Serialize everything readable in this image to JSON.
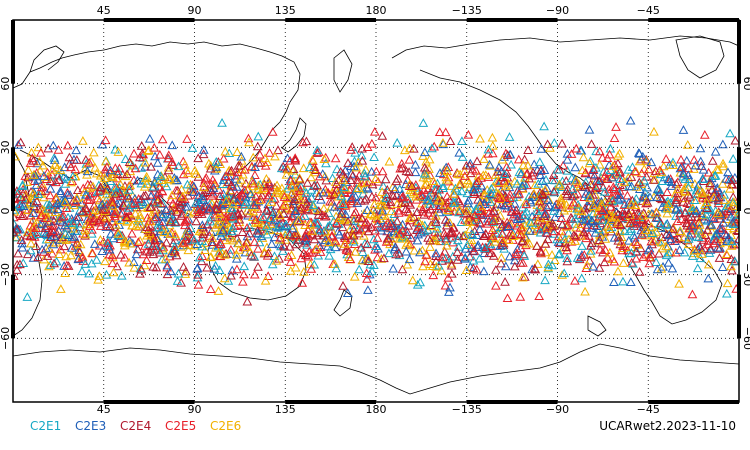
{
  "chart_data": {
    "type": "scatter",
    "projection": "cylindrical-equidistant",
    "center_longitude": 180,
    "xlim": [
      0,
      360
    ],
    "ylim": [
      -90,
      90
    ],
    "grid": true,
    "legend_position": "bottom-left",
    "x_tick_labels": [
      {
        "lon": 45,
        "label": "45"
      },
      {
        "lon": 90,
        "label": "90"
      },
      {
        "lon": 135,
        "label": "135"
      },
      {
        "lon": 180,
        "label": "180"
      },
      {
        "lon": 225,
        "label": "−135"
      },
      {
        "lon": 270,
        "label": "−90"
      },
      {
        "lon": 315,
        "label": "−45"
      }
    ],
    "y_tick_labels": [
      {
        "lat": 60,
        "label": "60"
      },
      {
        "lat": 30,
        "label": "30"
      },
      {
        "lat": 0,
        "label": "0"
      },
      {
        "lat": -30,
        "label": "−30"
      },
      {
        "lat": -60,
        "label": "−60"
      }
    ],
    "marker": "triangle-open",
    "series": [
      {
        "name": "C2E1",
        "color": "#17a8c4",
        "count": 520
      },
      {
        "name": "C2E3",
        "color": "#1f5fb8",
        "count": 520
      },
      {
        "name": "C2E4",
        "color": "#b01a2e",
        "count": 700
      },
      {
        "name": "C2E5",
        "color": "#e8202a",
        "count": 700
      },
      {
        "name": "C2E6",
        "color": "#f2b100",
        "count": 820
      }
    ],
    "observation_latitude_range": [
      -45,
      45
    ]
  },
  "footer": {
    "product_label": "UCARwet2.2023-11-10"
  }
}
